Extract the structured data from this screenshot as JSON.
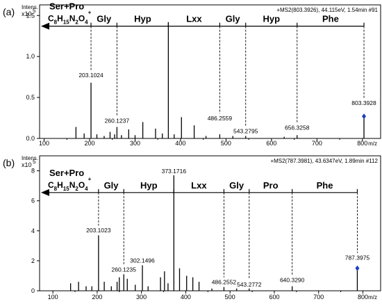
{
  "chart_data": [
    {
      "type": "bar",
      "panel_label": "(a)",
      "ylabel": "Intens.",
      "ymult": "x10",
      "yexp": "5",
      "xunit": "m/z",
      "header": "+MS2(803.3926), 44.115eV, 1.54min #91",
      "xlim": [
        90,
        840
      ],
      "ylim": [
        0,
        1.63
      ],
      "xticks": [
        100,
        200,
        300,
        400,
        500,
        600,
        700,
        800
      ],
      "yticks": [
        0.0,
        0.5,
        1.0,
        1.5
      ],
      "ytick_labels": [
        "0.0",
        "0.5",
        "1.0",
        "1.5"
      ],
      "peaks": [
        {
          "x": 170,
          "y": 0.14
        },
        {
          "x": 188,
          "y": 0.06
        },
        {
          "x": 203.1024,
          "y": 0.68
        },
        {
          "x": 216,
          "y": 0.05
        },
        {
          "x": 232,
          "y": 0.03
        },
        {
          "x": 245,
          "y": 0.08
        },
        {
          "x": 255,
          "y": 0.05
        },
        {
          "x": 260.1237,
          "y": 0.14
        },
        {
          "x": 270,
          "y": 0.04
        },
        {
          "x": 286,
          "y": 0.11
        },
        {
          "x": 300,
          "y": 0.04
        },
        {
          "x": 317,
          "y": 0.2
        },
        {
          "x": 345,
          "y": 0.12
        },
        {
          "x": 360,
          "y": 0.06
        },
        {
          "x": 373.1718,
          "y": 1.42
        },
        {
          "x": 386,
          "y": 0.05
        },
        {
          "x": 402,
          "y": 0.26
        },
        {
          "x": 430,
          "y": 0.16
        },
        {
          "x": 456,
          "y": 0.03
        },
        {
          "x": 486.2559,
          "y": 0.05
        },
        {
          "x": 515,
          "y": 0.03
        },
        {
          "x": 543.2795,
          "y": 0.03
        },
        {
          "x": 628,
          "y": 0.02
        },
        {
          "x": 656.3258,
          "y": 0.04
        },
        {
          "x": 803.3928,
          "y": 0.27
        }
      ],
      "labels": [
        {
          "x": 203.1024,
          "y": 0.68,
          "text": "203.1024",
          "dy": -8
        },
        {
          "x": 260.1237,
          "y": 0.14,
          "text": "260.1237",
          "dy": -6
        },
        {
          "x": 373.1718,
          "y": 1.42,
          "text": "373.1718",
          "dy": -38
        },
        {
          "x": 486.2559,
          "y": 0.05,
          "text": "486.2559",
          "dy": -20
        },
        {
          "x": 543.2795,
          "y": 0.03,
          "text": "543.2795",
          "dy": -4
        },
        {
          "x": 656.3258,
          "y": 0.04,
          "text": "656.3258",
          "dy": -8
        },
        {
          "x": 803.3928,
          "y": 0.27,
          "text": "803.3928",
          "dy": -16
        }
      ],
      "precursor_marker": 803.3928,
      "ion_series": {
        "arrow_y": 1.37,
        "start_x": 803.3928,
        "tail_x": 90,
        "label1": "Ser+Pro",
        "formula": {
          "base": "C",
          "n1": "8",
          "mid": "H",
          "n2": "15",
          "mid2": "N",
          "n3": "2",
          "mid3": "O",
          "n4": "4",
          "charge": "+"
        },
        "residues": [
          "Gly",
          "Hyp",
          "Lxx",
          "Gly",
          "Hyp",
          "Phe"
        ],
        "boundaries": [
          203.1024,
          260.1237,
          373.1718,
          486.2559,
          543.2795,
          656.3258,
          803.3928
        ]
      }
    },
    {
      "type": "bar",
      "panel_label": "(b)",
      "ylabel": "Intens.",
      "ymult": "x10",
      "yexp": "5",
      "xunit": "m/z",
      "header": "+MS2(787.3981), 43.6347eV, 1.89min #112",
      "xlim": [
        70,
        840
      ],
      "ylim": [
        0,
        9.0
      ],
      "xticks": [
        100,
        200,
        300,
        400,
        500,
        600,
        700,
        800
      ],
      "yticks": [
        0,
        2,
        4,
        6,
        8
      ],
      "ytick_labels": [
        "0",
        "2",
        "4",
        "6",
        "8"
      ],
      "peaks": [
        {
          "x": 140,
          "y": 0.5
        },
        {
          "x": 158,
          "y": 0.6
        },
        {
          "x": 175,
          "y": 0.3
        },
        {
          "x": 188,
          "y": 0.3
        },
        {
          "x": 203.1023,
          "y": 3.7
        },
        {
          "x": 216,
          "y": 0.6
        },
        {
          "x": 232,
          "y": 0.3
        },
        {
          "x": 245,
          "y": 0.6
        },
        {
          "x": 250,
          "y": 0.9
        },
        {
          "x": 260.1235,
          "y": 1.1
        },
        {
          "x": 268,
          "y": 0.8
        },
        {
          "x": 286,
          "y": 0.4
        },
        {
          "x": 302.1496,
          "y": 1.7
        },
        {
          "x": 315,
          "y": 0.3
        },
        {
          "x": 343,
          "y": 0.9
        },
        {
          "x": 352,
          "y": 1.3
        },
        {
          "x": 360,
          "y": 0.5
        },
        {
          "x": 373.1716,
          "y": 7.7
        },
        {
          "x": 386,
          "y": 1.5
        },
        {
          "x": 402,
          "y": 1.0
        },
        {
          "x": 416,
          "y": 0.9
        },
        {
          "x": 430,
          "y": 0.6
        },
        {
          "x": 459,
          "y": 0.15
        },
        {
          "x": 486.2552,
          "y": 0.25
        },
        {
          "x": 515,
          "y": 0.15
        },
        {
          "x": 543.2772,
          "y": 0.15
        },
        {
          "x": 640.329,
          "y": 0.3
        },
        {
          "x": 787.3975,
          "y": 1.5
        }
      ],
      "labels": [
        {
          "x": 203.1023,
          "y": 3.7,
          "text": "203.1023",
          "dy": -4
        },
        {
          "x": 260.1235,
          "y": 1.1,
          "text": "260.1235",
          "dy": -4
        },
        {
          "x": 302.1496,
          "y": 1.7,
          "text": "302.1496",
          "dy": -4
        },
        {
          "x": 373.1716,
          "y": 7.7,
          "text": "373.1716",
          "dy": -3
        },
        {
          "x": 486.2552,
          "y": 0.25,
          "text": "486.2552",
          "dy": -4
        },
        {
          "x": 543.2772,
          "y": 0.15,
          "text": "543.2772",
          "dy": -3
        },
        {
          "x": 640.329,
          "y": 0.3,
          "text": "640.3290",
          "dy": -6
        },
        {
          "x": 787.3975,
          "y": 1.5,
          "text": "787.3975",
          "dy": -12
        }
      ],
      "precursor_marker": 787.3975,
      "ion_series": {
        "arrow_y": 6.55,
        "start_x": 787.3975,
        "tail_x": 70,
        "label1": "Ser+Pro",
        "formula": {
          "base": "C",
          "n1": "8",
          "mid": "H",
          "n2": "15",
          "mid2": "N",
          "n3": "2",
          "mid3": "O",
          "n4": "4",
          "charge": "+"
        },
        "residues": [
          "Gly",
          "Hyp",
          "Lxx",
          "Gly",
          "Pro",
          "Phe"
        ],
        "boundaries": [
          203.1023,
          260.1235,
          373.1716,
          486.2552,
          543.2772,
          640.329,
          787.3975
        ]
      }
    }
  ]
}
